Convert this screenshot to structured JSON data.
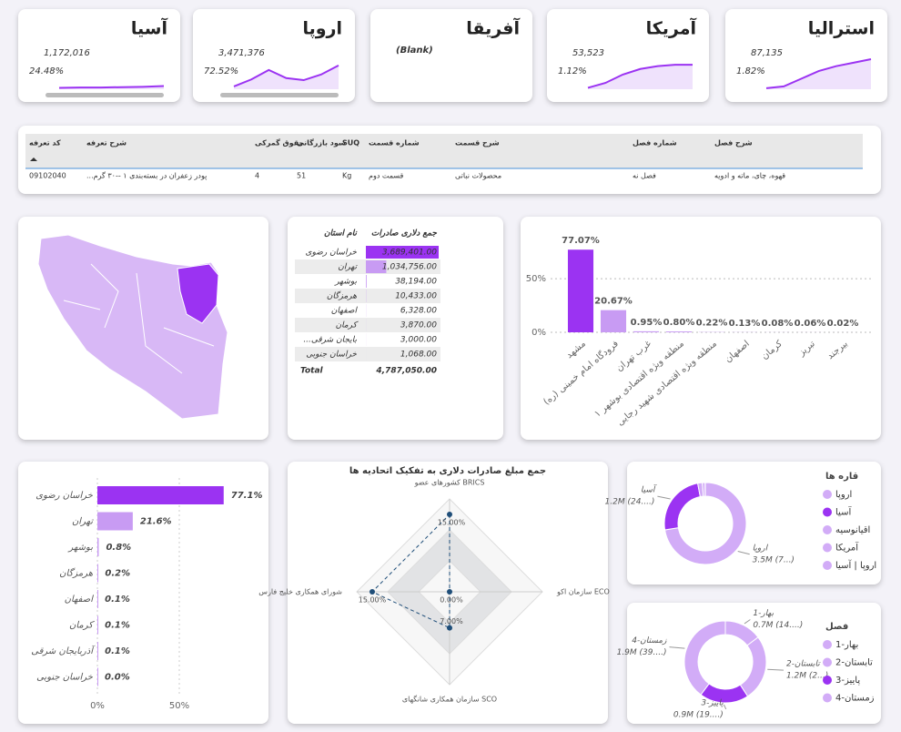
{
  "cards": [
    {
      "name": "آسیا",
      "value": "1,172,016",
      "percent": "24.48%",
      "trend": [
        4,
        5,
        5,
        6,
        7,
        9
      ]
    },
    {
      "name": "اروپا",
      "value": "3,471,376",
      "percent": "72.52%",
      "trend": [
        8,
        28,
        55,
        32,
        26,
        42,
        68
      ]
    },
    {
      "name": "آفریقا",
      "value": "(Blank)"
    },
    {
      "name": "آمریکا",
      "value": "53,523",
      "percent": "1.12%",
      "trend": [
        4,
        18,
        42,
        58,
        66,
        70,
        70
      ]
    },
    {
      "name": "استرالیا",
      "value": "87,135",
      "percent": "1.82%",
      "trend": [
        3,
        8,
        30,
        52,
        66,
        76,
        86
      ]
    }
  ],
  "table": {
    "headers": [
      "کد تعرفه",
      "شرح تعرفه",
      "حقوق گمرکی",
      "سود بازرگانی",
      "SUQ",
      "شماره قسمت",
      "شرح قسمت",
      "شماره فصل",
      "شرح فصل"
    ],
    "rows": [
      [
        "09102040",
        "...پودر زعفران در بسته‌بندی ۱ --۳۰ گرم",
        "4",
        "51",
        "Kg",
        "قسمت دوم",
        "محصولات نباتی",
        "فصل نه",
        "قهوه، چای، ماته و ادویه"
      ]
    ]
  },
  "province_table": {
    "headers": [
      "نام استان",
      "جمع دلاری صادرات"
    ],
    "rows": [
      {
        "name": "خراسان رضوی",
        "value": 3689401,
        "label": "3,689,401.00"
      },
      {
        "name": "تهران",
        "value": 1034756,
        "label": "1,034,756.00"
      },
      {
        "name": "بوشهر",
        "value": 38194,
        "label": "38,194.00"
      },
      {
        "name": "هرمزگان",
        "value": 10433,
        "label": "10,433.00"
      },
      {
        "name": "اصفهان",
        "value": 6328,
        "label": "6,328.00"
      },
      {
        "name": "کرمان",
        "value": 3870,
        "label": "3,870.00"
      },
      {
        "name": "...بایجان شرقی",
        "value": 3000,
        "label": "3,000.00"
      },
      {
        "name": "خراسان جنوبی",
        "value": 1068,
        "label": "1,068.00"
      }
    ],
    "total_label": "Total",
    "total": "4,787,050.00"
  },
  "chart_data": [
    {
      "type": "bar",
      "categories": [
        "مشهد",
        "فرودگاه امام خمینی (ره)",
        "غرب تهران",
        "منطقه ویژه اقتصادی بوشهر ۱",
        "منطقه ویژه اقتصادی شهید رجایی",
        "اصفهان",
        "کرمان",
        "تبریز",
        "بیرجند"
      ],
      "values": [
        77.07,
        20.67,
        0.95,
        0.8,
        0.22,
        0.13,
        0.08,
        0.06,
        0.02
      ],
      "value_labels": [
        "77.07%",
        "20.67%",
        "0.95%",
        "0.80%",
        "0.22%",
        "0.13%",
        "0.08%",
        "0.06%",
        "0.02%"
      ],
      "colors": [
        "#9b33f2",
        "#c89bf3",
        "#c89bf3",
        "#c89bf3",
        "#c89bf3",
        "#c89bf3",
        "#c89bf3",
        "#c89bf3",
        "#c89bf3"
      ],
      "ylim": [
        0,
        90
      ],
      "yticks": [
        {
          "value": 0,
          "label": "0%"
        },
        {
          "value": 50,
          "label": "50%"
        }
      ],
      "grid": true
    },
    {
      "type": "barh",
      "categories": [
        "خراسان رضوی",
        "تهران",
        "بوشهر",
        "هرمزگان",
        "اصفهان",
        "کرمان",
        "آذربایجان شرقی",
        "خراسان جنوبی"
      ],
      "values": [
        77.1,
        21.6,
        0.8,
        0.2,
        0.1,
        0.1,
        0.1,
        0.0
      ],
      "value_labels": [
        "77.1%",
        "21.6%",
        "0.8%",
        "0.2%",
        "0.1%",
        "0.1%",
        "0.1%",
        "0.0%"
      ],
      "colors": [
        "#9b33f2",
        "#c89bf3",
        "#c89bf3",
        "#c89bf3",
        "#c89bf3",
        "#c89bf3",
        "#c89bf3",
        "#c89bf3"
      ],
      "xlim": [
        0,
        100
      ],
      "xticks": [
        {
          "value": 0,
          "label": "0%"
        },
        {
          "value": 50,
          "label": "50%"
        }
      ]
    },
    {
      "type": "radar",
      "title": "جمع مبلغ صادرات دلاری به تفکیک اتحادیه ها",
      "categories": [
        "کشورهای عضو BRICS",
        "سازمان اکو ECO",
        "سازمان همکاری شانگهای SCO",
        "شورای همکاری خلیج فارس"
      ],
      "values": [
        15,
        0,
        7,
        15
      ],
      "value_labels": [
        "15.00%",
        "0.00%",
        "7.00%",
        "15.00%"
      ],
      "rlim": [
        0,
        18
      ],
      "color": "#1f4e79"
    },
    {
      "type": "donut",
      "legend_title": "قاره ها",
      "categories": [
        "اروپا",
        "آسیا",
        "اقیانوسیه",
        "آمریکا",
        "اروپا | آسیا"
      ],
      "values": [
        3471376,
        1172016,
        87135,
        53523,
        3000
      ],
      "value_labels": [
        "3.5M (7...)",
        "1.2M (24....)",
        null,
        null,
        null
      ],
      "colors": [
        "#d2acf7",
        "#9b33f2",
        "#d2acf7",
        "#d2acf7",
        "#d2acf7"
      ]
    },
    {
      "type": "donut",
      "legend_title": "فصل",
      "categories": [
        "بهار-1",
        "تابستان-2",
        "پاییز-3",
        "زمستان-4"
      ],
      "values": [
        700000,
        1240000,
        920000,
        1890000
      ],
      "value_labels": [
        "0.7M (14....)",
        "1.2M (2...)",
        "0.9M (19....)",
        "1.9M (39....)"
      ],
      "colors": [
        "#d2acf7",
        "#d2acf7",
        "#9b33f2",
        "#d2acf7"
      ]
    }
  ]
}
